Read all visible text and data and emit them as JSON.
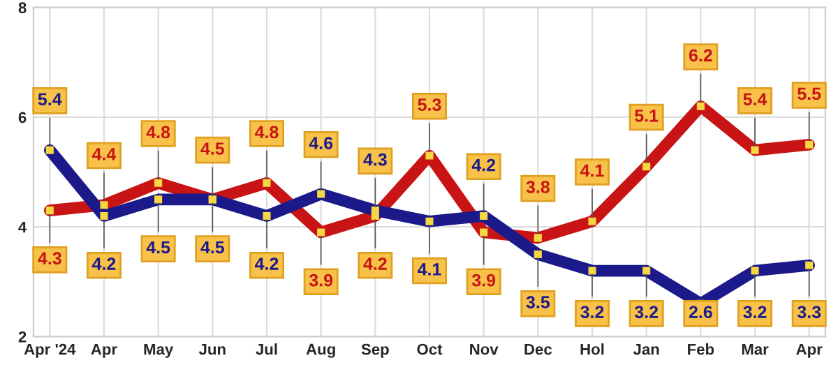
{
  "chart_data": {
    "type": "line",
    "categories": [
      "Apr '24",
      "Apr",
      "May",
      "Jun",
      "Jul",
      "Aug",
      "Sep",
      "Oct",
      "Nov",
      "Dec",
      "Hol",
      "Jan",
      "Feb",
      "Mar",
      "Apr"
    ],
    "series": [
      {
        "color": "#c81414",
        "values": [
          4.3,
          4.4,
          4.8,
          4.5,
          4.8,
          3.9,
          4.2,
          5.3,
          3.9,
          3.8,
          4.1,
          5.1,
          6.2,
          5.4,
          5.5
        ]
      },
      {
        "color": "#1c1a8a",
        "values": [
          5.4,
          4.2,
          4.5,
          4.5,
          4.2,
          4.6,
          4.3,
          4.1,
          4.2,
          3.5,
          3.2,
          3.2,
          2.6,
          3.2,
          3.3
        ]
      }
    ],
    "ylim": [
      2,
      8
    ],
    "yticks": [
      2,
      4,
      6,
      8
    ],
    "grid": true,
    "marker": "square",
    "line_style": "solid",
    "data_labels": true
  }
}
